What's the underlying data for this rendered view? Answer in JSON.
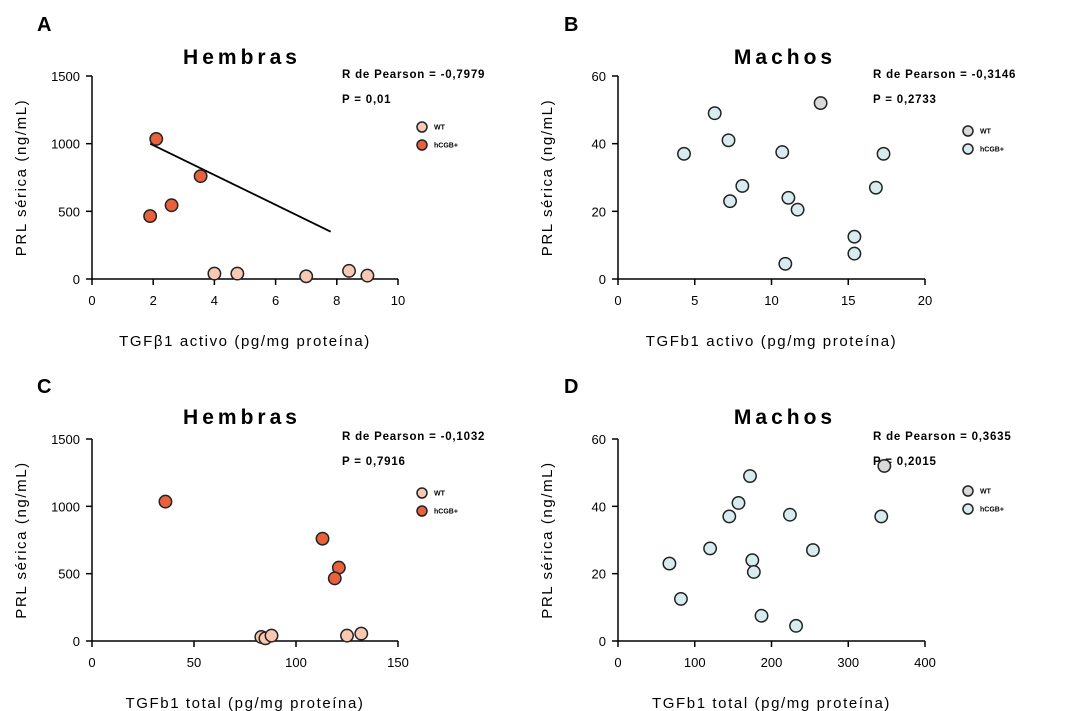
{
  "colors": {
    "wt_female": "#f7c8b2",
    "hcgb_female": "#e8603c",
    "wt_male": "#d9d9d9",
    "hcgb_male": "#d6ecef"
  },
  "chart_data": [
    {
      "type": "scatter",
      "panel_letter": "A",
      "title": "Hembras",
      "xlabel": "TGFβ1 activo (pg/mg proteína)",
      "ylabel": "PRL sérica (ng/mL)",
      "xlim": [
        0,
        10
      ],
      "ylim": [
        0,
        1500
      ],
      "xticks": [
        "0",
        "2",
        "4",
        "6",
        "8",
        "10"
      ],
      "yticks": [
        "0",
        "500",
        "1000",
        "1500"
      ],
      "stat_r": "R de Pearson = -0,7979",
      "stat_p": "P = 0,01",
      "grid": false,
      "legend_position": "right",
      "legend": [
        {
          "label": "WT",
          "color": "#f7c8b2"
        },
        {
          "label": "hCGB+",
          "color": "#e8603c"
        }
      ],
      "series": [
        {
          "name": "WT",
          "color": "#f7c8b2",
          "points": [
            [
              4.0,
              40
            ],
            [
              4.75,
              40
            ],
            [
              7.0,
              20
            ],
            [
              8.4,
              60
            ],
            [
              9.0,
              25
            ]
          ]
        },
        {
          "name": "hCGB+",
          "color": "#e8603c",
          "points": [
            [
              2.1,
              1035
            ],
            [
              3.55,
              760
            ],
            [
              2.6,
              545
            ],
            [
              1.9,
              465
            ]
          ]
        }
      ],
      "fit_line": [
        [
          1.9,
          1000
        ],
        [
          7.8,
          350
        ]
      ]
    },
    {
      "type": "scatter",
      "panel_letter": "B",
      "title": "Machos",
      "xlabel": "TGFb1 activo (pg/mg proteína)",
      "ylabel": "PRL sérica (ng/mL)",
      "xlim": [
        0,
        20
      ],
      "ylim": [
        0,
        60
      ],
      "xticks": [
        "0",
        "5",
        "10",
        "15",
        "20"
      ],
      "yticks": [
        "0",
        "20",
        "40",
        "60"
      ],
      "stat_r": "R de Pearson = -0,3146",
      "stat_p": "P = 0,2733",
      "grid": false,
      "legend_position": "right",
      "legend": [
        {
          "label": "WT",
          "color": "#d9d9d9"
        },
        {
          "label": "hCGB+",
          "color": "#d6ecef"
        }
      ],
      "series": [
        {
          "name": "WT",
          "color": "#d9d9d9",
          "points": [
            [
              13.2,
              52
            ]
          ]
        },
        {
          "name": "hCGB+",
          "color": "#d6ecef",
          "points": [
            [
              4.3,
              37
            ],
            [
              6.3,
              49
            ],
            [
              7.2,
              41
            ],
            [
              7.3,
              23
            ],
            [
              8.1,
              27.5
            ],
            [
              10.7,
              37.5
            ],
            [
              11.1,
              24
            ],
            [
              11.7,
              20.5
            ],
            [
              10.9,
              4.5
            ],
            [
              15.4,
              12.5
            ],
            [
              15.4,
              7.5
            ],
            [
              16.8,
              27
            ],
            [
              17.3,
              37
            ]
          ]
        }
      ],
      "fit_line": []
    },
    {
      "type": "scatter",
      "panel_letter": "C",
      "title": "Hembras",
      "xlabel": "TGFb1 total (pg/mg proteína)",
      "ylabel": "PRL sérica (ng/mL)",
      "xlim": [
        0,
        150
      ],
      "ylim": [
        0,
        1500
      ],
      "xticks": [
        "0",
        "50",
        "100",
        "150"
      ],
      "yticks": [
        "0",
        "500",
        "1000",
        "1500"
      ],
      "stat_r": "R de Pearson = -0,1032",
      "stat_p": "P = 0,7916",
      "grid": false,
      "legend_position": "right",
      "legend": [
        {
          "label": "WT",
          "color": "#f7c8b2"
        },
        {
          "label": "hCGB+",
          "color": "#e8603c"
        }
      ],
      "series": [
        {
          "name": "WT",
          "color": "#f7c8b2",
          "points": [
            [
              83,
              30
            ],
            [
              85,
              20
            ],
            [
              88,
              40
            ],
            [
              125,
              40
            ],
            [
              132,
              55
            ]
          ]
        },
        {
          "name": "hCGB+",
          "color": "#e8603c",
          "points": [
            [
              36,
              1035
            ],
            [
              113,
              760
            ],
            [
              121,
              545
            ],
            [
              119,
              465
            ]
          ]
        }
      ],
      "fit_line": []
    },
    {
      "type": "scatter",
      "panel_letter": "D",
      "title": "Machos",
      "xlabel": "TGFb1 total (pg/mg proteína)",
      "ylabel": "PRL sérica (ng/mL)",
      "xlim": [
        0,
        400
      ],
      "ylim": [
        0,
        60
      ],
      "xticks": [
        "0",
        "100",
        "200",
        "300",
        "400"
      ],
      "yticks": [
        "0",
        "20",
        "40",
        "60"
      ],
      "stat_r": "R de Pearson = 0,3635",
      "stat_p": "P = 0,2015",
      "grid": false,
      "legend_position": "right",
      "legend": [
        {
          "label": "WT",
          "color": "#d9d9d9"
        },
        {
          "label": "hCGB+",
          "color": "#d6ecef"
        }
      ],
      "series": [
        {
          "name": "WT",
          "color": "#d9d9d9",
          "points": [
            [
              347,
              52
            ]
          ]
        },
        {
          "name": "hCGB+",
          "color": "#d6ecef",
          "points": [
            [
              67,
              23
            ],
            [
              82,
              12.5
            ],
            [
              120,
              27.5
            ],
            [
              145,
              37
            ],
            [
              157,
              41
            ],
            [
              172,
              49
            ],
            [
              175,
              24
            ],
            [
              177,
              20.5
            ],
            [
              187,
              7.5
            ],
            [
              224,
              37.5
            ],
            [
              232,
              4.5
            ],
            [
              254,
              27
            ],
            [
              343,
              37
            ]
          ]
        }
      ],
      "fit_line": []
    }
  ]
}
